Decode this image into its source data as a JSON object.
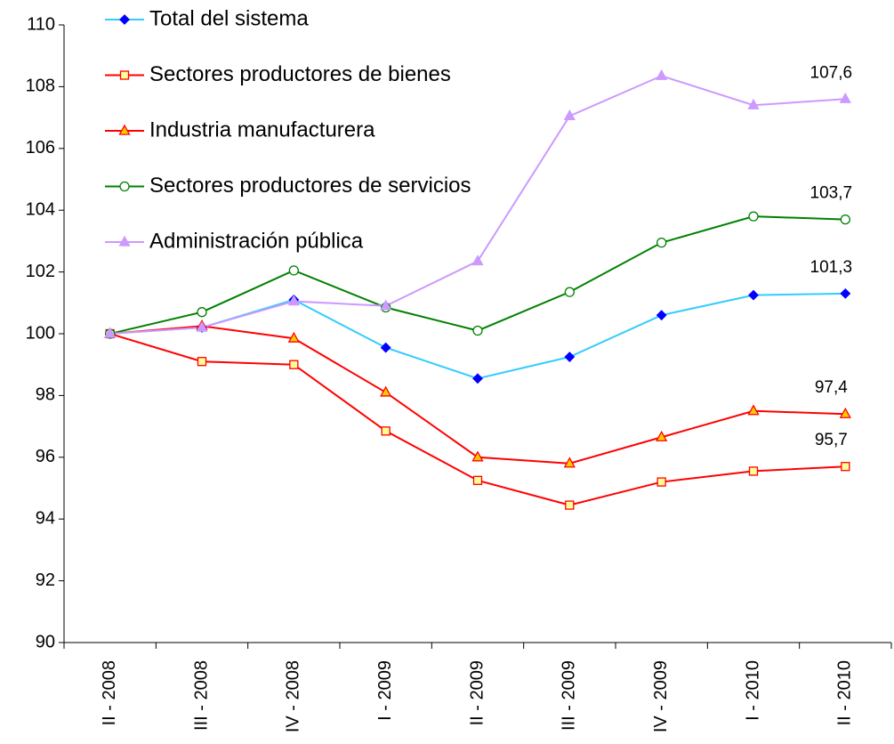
{
  "chart_data": {
    "type": "line",
    "categories": [
      "II - 2008",
      "III - 2008",
      "IV - 2008",
      "I - 2009",
      "II - 2009",
      "III - 2009",
      "IV - 2009",
      "I - 2010",
      "II - 2010"
    ],
    "series": [
      {
        "name": "Total del sistema",
        "color": "#33ccff",
        "marker": "diamond",
        "marker_color": "#0000ff",
        "marker_fill": "#0000ff",
        "values": [
          100,
          100.2,
          101.1,
          99.55,
          98.55,
          99.25,
          100.6,
          101.25,
          101.3
        ],
        "value_labels": [
          null,
          null,
          null,
          null,
          null,
          null,
          null,
          null,
          "101,3"
        ]
      },
      {
        "name": "Sectores productores de bienes",
        "color": "#ff0000",
        "marker": "square",
        "marker_color": "#ff0000",
        "marker_fill": "#ffff99",
        "values": [
          100,
          99.1,
          99.0,
          96.85,
          95.25,
          94.45,
          95.2,
          95.55,
          95.7
        ],
        "value_labels": [
          null,
          null,
          null,
          null,
          null,
          null,
          null,
          null,
          "95,7"
        ]
      },
      {
        "name": "Industria manufacturera",
        "color": "#ff0000",
        "marker": "triangle",
        "marker_color": "#ff0000",
        "marker_fill": "#ffcc00",
        "values": [
          100,
          100.25,
          99.85,
          98.1,
          96.0,
          95.8,
          96.65,
          97.5,
          97.4
        ],
        "value_labels": [
          null,
          null,
          null,
          null,
          null,
          null,
          null,
          null,
          "97,4"
        ]
      },
      {
        "name": "Sectores productores de servicios",
        "color": "#008000",
        "marker": "circle",
        "marker_color": "#008000",
        "marker_fill": "#ffffff",
        "values": [
          100,
          100.7,
          102.05,
          100.85,
          100.1,
          101.35,
          102.95,
          103.8,
          103.7
        ],
        "value_labels": [
          null,
          null,
          null,
          null,
          null,
          null,
          null,
          null,
          "103,7"
        ]
      },
      {
        "name": "Administración pública",
        "color": "#cc99ff",
        "marker": "triangle",
        "marker_color": "#cc99ff",
        "marker_fill": "#cc99ff",
        "values": [
          100,
          100.2,
          101.05,
          100.9,
          102.35,
          107.05,
          108.35,
          107.4,
          107.6
        ],
        "value_labels": [
          null,
          null,
          null,
          null,
          null,
          null,
          null,
          null,
          "107,6"
        ]
      }
    ],
    "ylim": [
      90,
      110
    ],
    "yticks": [
      90,
      92,
      94,
      96,
      98,
      100,
      102,
      104,
      106,
      108,
      110
    ],
    "grid": false,
    "legend": "upper-left"
  }
}
